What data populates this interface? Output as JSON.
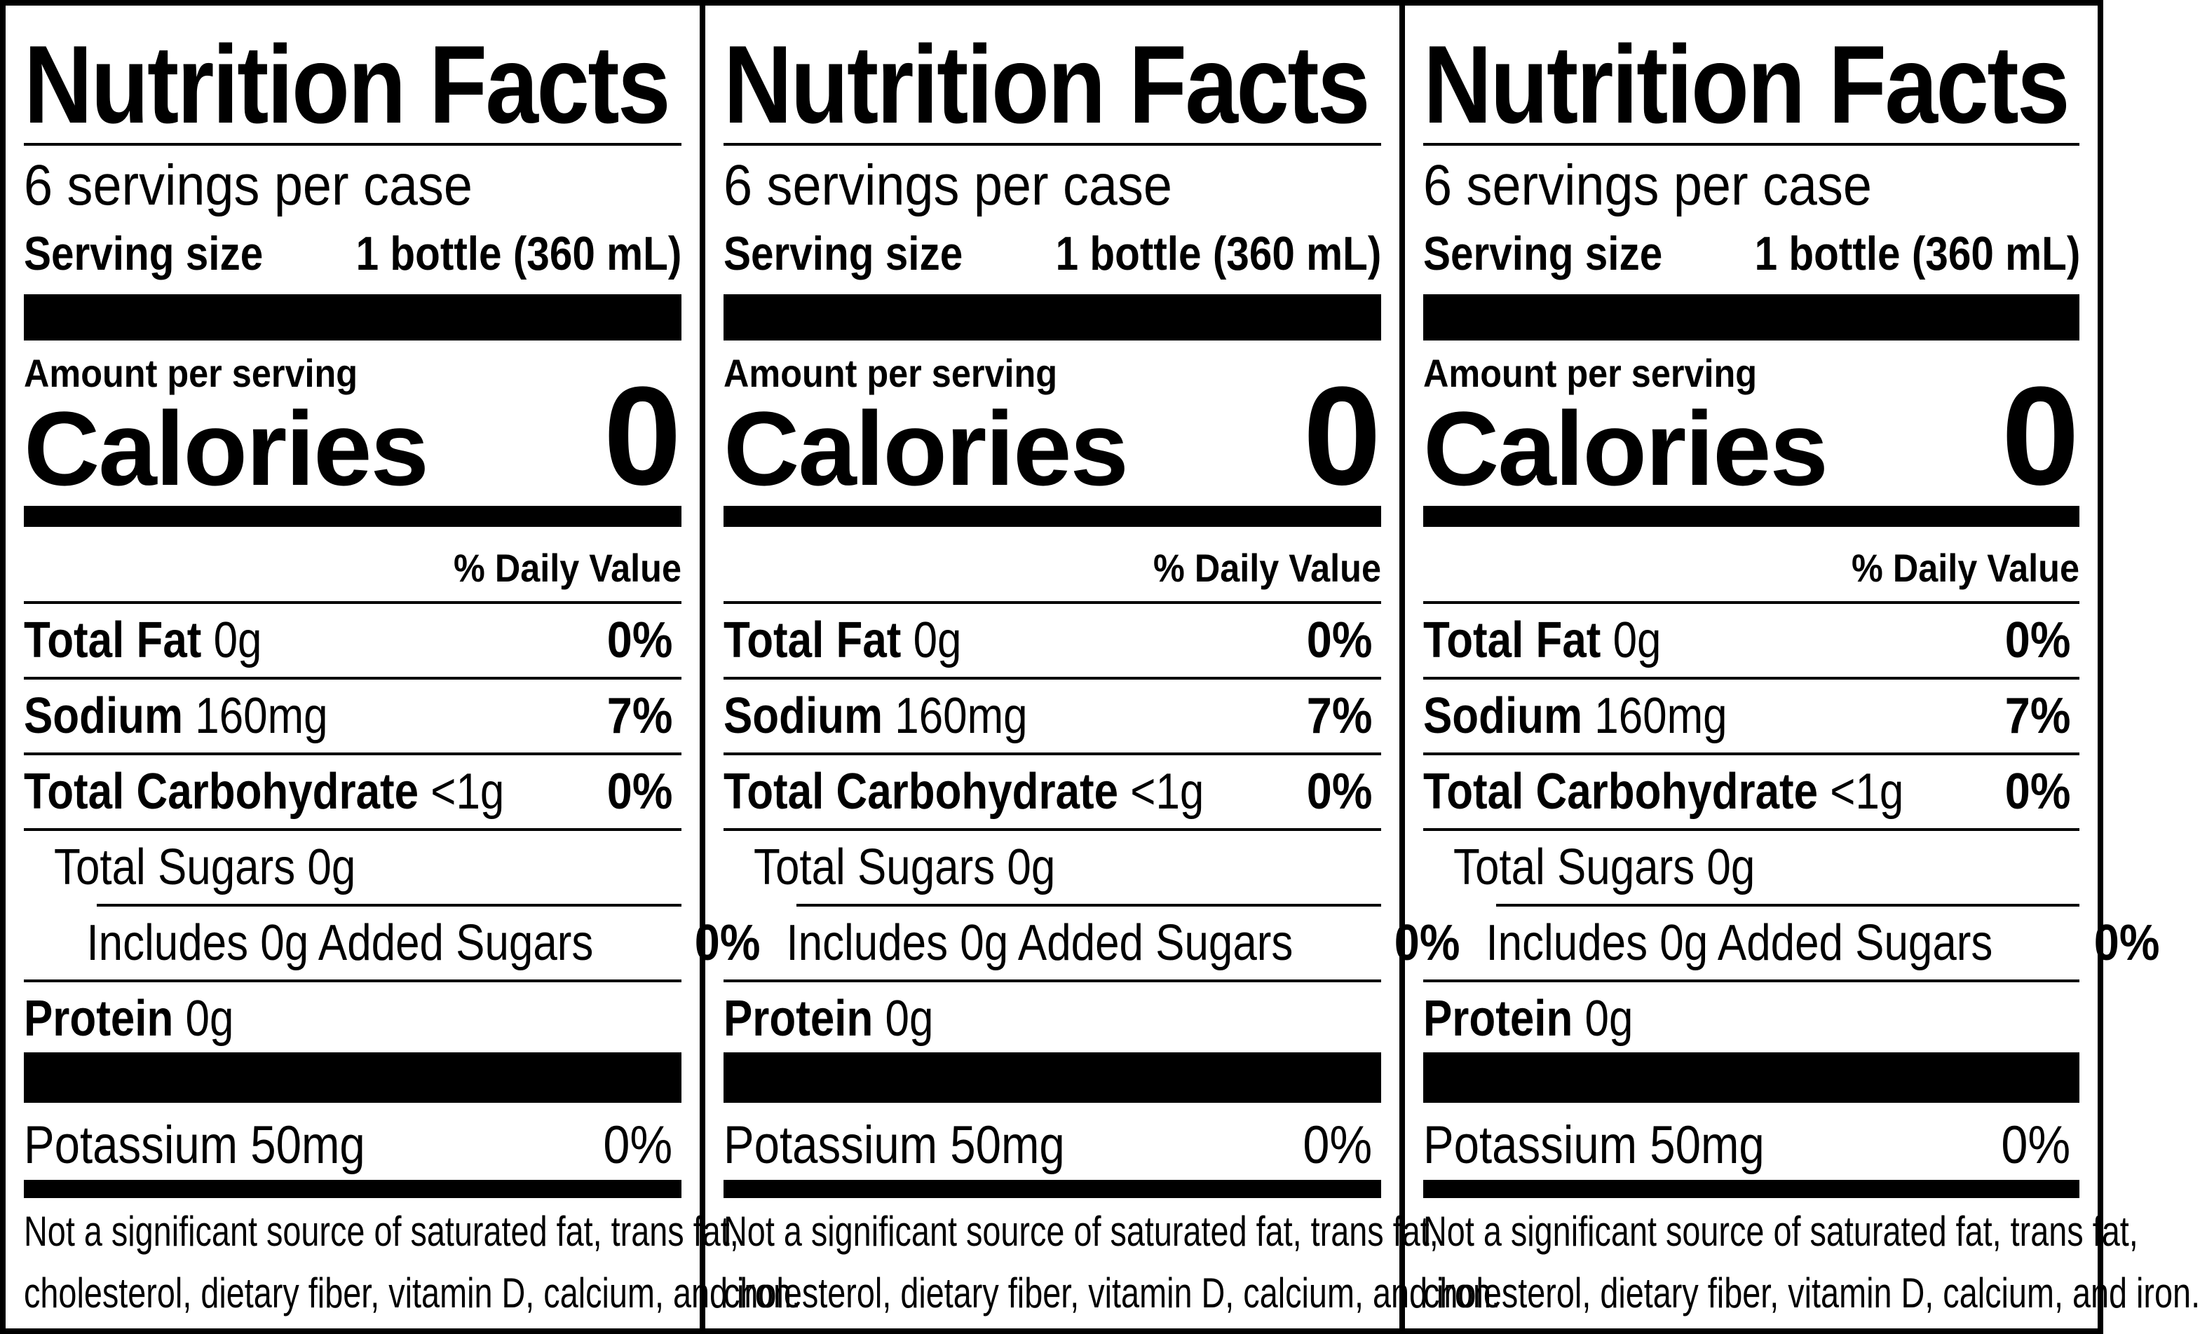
{
  "panels": [
    {
      "title": "Nutrition Facts",
      "servings_per": "6 servings per case",
      "serving_size_label": "Serving size",
      "serving_size_value": "1 bottle (360 mL)",
      "amount_per_serving": "Amount per serving",
      "calories_label": "Calories",
      "calories_value": "0",
      "daily_value_header": "% Daily Value",
      "rows": [
        {
          "name": "Total Fat",
          "amount": "0g",
          "percent": "0%"
        },
        {
          "name": "Sodium",
          "amount": "160mg",
          "percent": "7%"
        },
        {
          "name": "Total Carbohydrate",
          "amount": "<1g",
          "percent": "0%"
        },
        {
          "text": "Total Sugars 0g",
          "percent": ""
        },
        {
          "text": "Includes 0g Added Sugars",
          "percent": "0%"
        },
        {
          "name": "Protein",
          "amount": "0g",
          "percent": ""
        }
      ],
      "potassium_text": "Potassium 50mg",
      "potassium_percent": "0%",
      "footnote_line1": "Not a significant source of saturated fat, trans fat,",
      "footnote_line2": "cholesterol, dietary fiber, vitamin D, calcium, and iron."
    },
    {
      "title": "Nutrition Facts",
      "servings_per": "6 servings per case",
      "serving_size_label": "Serving size",
      "serving_size_value": "1 bottle (360 mL)",
      "amount_per_serving": "Amount per serving",
      "calories_label": "Calories",
      "calories_value": "0",
      "daily_value_header": "% Daily Value",
      "rows": [
        {
          "name": "Total Fat",
          "amount": "0g",
          "percent": "0%"
        },
        {
          "name": "Sodium",
          "amount": "160mg",
          "percent": "7%"
        },
        {
          "name": "Total Carbohydrate",
          "amount": "<1g",
          "percent": "0%"
        },
        {
          "text": "Total Sugars 0g",
          "percent": ""
        },
        {
          "text": "Includes 0g Added Sugars",
          "percent": "0%"
        },
        {
          "name": "Protein",
          "amount": "0g",
          "percent": ""
        }
      ],
      "potassium_text": "Potassium 50mg",
      "potassium_percent": "0%",
      "footnote_line1": "Not a significant source of saturated fat, trans fat,",
      "footnote_line2": "cholesterol, dietary fiber, vitamin D, calcium, and iron."
    },
    {
      "title": "Nutrition Facts",
      "servings_per": "6 servings per case",
      "serving_size_label": "Serving size",
      "serving_size_value": "1 bottle (360 mL)",
      "amount_per_serving": "Amount per serving",
      "calories_label": "Calories",
      "calories_value": "0",
      "daily_value_header": "% Daily Value",
      "rows": [
        {
          "name": "Total Fat",
          "amount": "0g",
          "percent": "0%"
        },
        {
          "name": "Sodium",
          "amount": "160mg",
          "percent": "7%"
        },
        {
          "name": "Total Carbohydrate",
          "amount": "<1g",
          "percent": "0%"
        },
        {
          "text": "Total Sugars 0g",
          "percent": ""
        },
        {
          "text": "Includes 0g Added Sugars",
          "percent": "0%"
        },
        {
          "name": "Protein",
          "amount": "0g",
          "percent": ""
        }
      ],
      "potassium_text": "Potassium 50mg",
      "potassium_percent": "0%",
      "footnote_line1": "Not a significant source of saturated fat, trans fat,",
      "footnote_line2": "cholesterol, dietary fiber, vitamin D, calcium, and iron."
    }
  ]
}
